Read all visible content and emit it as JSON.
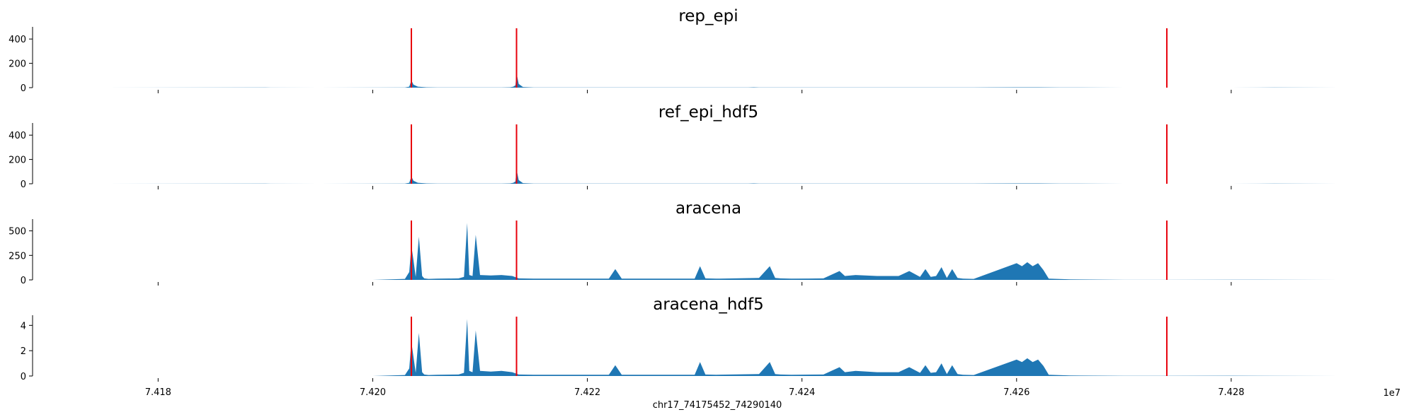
{
  "figure": {
    "xlabel": "chr17_74175452_74290140",
    "x_offset_label": "1e7",
    "x_ticks": [
      7.418,
      7.42,
      7.422,
      7.424,
      7.426,
      7.428
    ],
    "x_tick_labels": [
      "7.418",
      "7.420",
      "7.422",
      "7.424",
      "7.426",
      "7.428"
    ],
    "xlim": [
      7.41683,
      7.42903
    ],
    "red_marker_color": "#e8000b",
    "fill_color": "#1f77b4"
  },
  "chart_data": [
    {
      "type": "area",
      "title": "rep_epi",
      "ylim": [
        0,
        500
      ],
      "y_ticks": [
        0,
        200,
        400
      ],
      "markers_x": [
        7.42036,
        7.42134,
        7.4274
      ],
      "x": [
        7.4175,
        7.419,
        7.4195,
        7.4203,
        7.42034,
        7.42036,
        7.42038,
        7.42042,
        7.4205,
        7.4206,
        7.4209,
        7.4211,
        7.4212,
        7.42128,
        7.42131,
        7.42133,
        7.42134,
        7.42136,
        7.4214,
        7.4215,
        7.4223,
        7.42235,
        7.4224,
        7.4232,
        7.4233,
        7.42345,
        7.4235,
        7.42355,
        7.4236,
        7.424,
        7.4244,
        7.425,
        7.4256,
        7.426,
        7.4262,
        7.4264,
        7.427,
        7.428,
        7.4284,
        7.429
      ],
      "values": [
        0,
        1,
        0,
        1,
        8,
        60,
        25,
        8,
        3,
        1,
        1,
        1,
        1,
        3,
        8,
        20,
        120,
        30,
        5,
        1,
        1,
        2,
        1,
        1,
        2,
        1,
        1,
        3,
        1,
        1,
        1,
        2,
        2,
        3,
        3,
        2,
        0,
        0,
        1,
        0
      ]
    },
    {
      "type": "area",
      "title": "ref_epi_hdf5",
      "ylim": [
        0,
        500
      ],
      "y_ticks": [
        0,
        200,
        400
      ],
      "markers_x": [
        7.42036,
        7.42134,
        7.4274
      ],
      "x": [
        7.4175,
        7.419,
        7.4195,
        7.4203,
        7.42034,
        7.42036,
        7.42038,
        7.42042,
        7.4205,
        7.4206,
        7.4209,
        7.4211,
        7.4212,
        7.42128,
        7.42131,
        7.42133,
        7.42134,
        7.42136,
        7.4214,
        7.4215,
        7.4223,
        7.42235,
        7.4224,
        7.4232,
        7.4233,
        7.42345,
        7.4235,
        7.42355,
        7.4236,
        7.424,
        7.4244,
        7.425,
        7.4256,
        7.426,
        7.4262,
        7.4264,
        7.427,
        7.428,
        7.4284,
        7.429
      ],
      "values": [
        0,
        1,
        0,
        1,
        8,
        60,
        25,
        8,
        3,
        1,
        1,
        1,
        1,
        3,
        8,
        20,
        120,
        30,
        5,
        1,
        1,
        2,
        1,
        1,
        2,
        1,
        1,
        3,
        1,
        1,
        1,
        2,
        2,
        3,
        3,
        2,
        0,
        0,
        1,
        0
      ]
    },
    {
      "type": "area",
      "title": "aracena",
      "ylim": [
        0,
        620
      ],
      "y_ticks": [
        0,
        250,
        500
      ],
      "markers_x": [
        7.42036,
        7.42134,
        7.4274
      ],
      "x": [
        7.4175,
        7.419,
        7.42,
        7.4203,
        7.42034,
        7.42036,
        7.42038,
        7.4204,
        7.42043,
        7.42046,
        7.42048,
        7.42052,
        7.4206,
        7.4208,
        7.42085,
        7.42088,
        7.4209,
        7.42093,
        7.42096,
        7.421,
        7.4211,
        7.4212,
        7.4213,
        7.42136,
        7.4215,
        7.422,
        7.4222,
        7.42226,
        7.42232,
        7.4225,
        7.423,
        7.42305,
        7.4231,
        7.4232,
        7.4236,
        7.4237,
        7.42375,
        7.4238,
        7.4239,
        7.4242,
        7.42435,
        7.4244,
        7.4245,
        7.4247,
        7.4249,
        7.425,
        7.4251,
        7.42515,
        7.4252,
        7.42525,
        7.4253,
        7.42535,
        7.4254,
        7.42545,
        7.4255,
        7.4256,
        7.426,
        7.42605,
        7.4261,
        7.42615,
        7.4262,
        7.42625,
        7.4263,
        7.4265,
        7.427,
        7.428,
        7.429
      ],
      "values": [
        0,
        0,
        0,
        10,
        80,
        350,
        200,
        30,
        440,
        40,
        15,
        10,
        12,
        15,
        30,
        580,
        50,
        40,
        460,
        50,
        45,
        50,
        40,
        15,
        12,
        12,
        12,
        110,
        12,
        12,
        12,
        140,
        15,
        12,
        20,
        140,
        20,
        15,
        12,
        15,
        90,
        40,
        50,
        40,
        40,
        90,
        30,
        110,
        30,
        40,
        130,
        20,
        110,
        20,
        12,
        10,
        170,
        140,
        180,
        140,
        170,
        100,
        12,
        5,
        1,
        2,
        0
      ]
    },
    {
      "type": "area",
      "title": "aracena_hdf5",
      "ylim": [
        0,
        4.8
      ],
      "y_ticks": [
        0,
        2,
        4
      ],
      "markers_x": [
        7.42036,
        7.42134,
        7.4274
      ],
      "x": [
        7.4175,
        7.419,
        7.42,
        7.4203,
        7.42034,
        7.42036,
        7.42038,
        7.4204,
        7.42043,
        7.42046,
        7.42048,
        7.42052,
        7.4206,
        7.4208,
        7.42085,
        7.42088,
        7.4209,
        7.42093,
        7.42096,
        7.421,
        7.4211,
        7.4212,
        7.4213,
        7.42136,
        7.4215,
        7.422,
        7.4222,
        7.42226,
        7.42232,
        7.4225,
        7.423,
        7.42305,
        7.4231,
        7.4232,
        7.4236,
        7.4237,
        7.42375,
        7.4238,
        7.4239,
        7.4242,
        7.42435,
        7.4244,
        7.4245,
        7.4247,
        7.4249,
        7.425,
        7.4251,
        7.42515,
        7.4252,
        7.42525,
        7.4253,
        7.42535,
        7.4254,
        7.42545,
        7.4255,
        7.4256,
        7.426,
        7.42605,
        7.4261,
        7.42615,
        7.4262,
        7.42625,
        7.4263,
        7.4265,
        7.427,
        7.428,
        7.429
      ],
      "values": [
        0,
        0,
        0,
        0.08,
        0.6,
        2.7,
        1.5,
        0.25,
        3.4,
        0.3,
        0.12,
        0.08,
        0.1,
        0.12,
        0.25,
        4.5,
        0.4,
        0.3,
        3.6,
        0.4,
        0.35,
        0.4,
        0.3,
        0.12,
        0.1,
        0.1,
        0.1,
        0.85,
        0.1,
        0.1,
        0.1,
        1.1,
        0.12,
        0.1,
        0.15,
        1.1,
        0.15,
        0.12,
        0.1,
        0.12,
        0.7,
        0.3,
        0.4,
        0.3,
        0.3,
        0.7,
        0.25,
        0.85,
        0.25,
        0.3,
        1.0,
        0.15,
        0.85,
        0.15,
        0.1,
        0.08,
        1.3,
        1.1,
        1.4,
        1.1,
        1.3,
        0.8,
        0.1,
        0.04,
        0.01,
        0.02,
        0
      ]
    }
  ]
}
